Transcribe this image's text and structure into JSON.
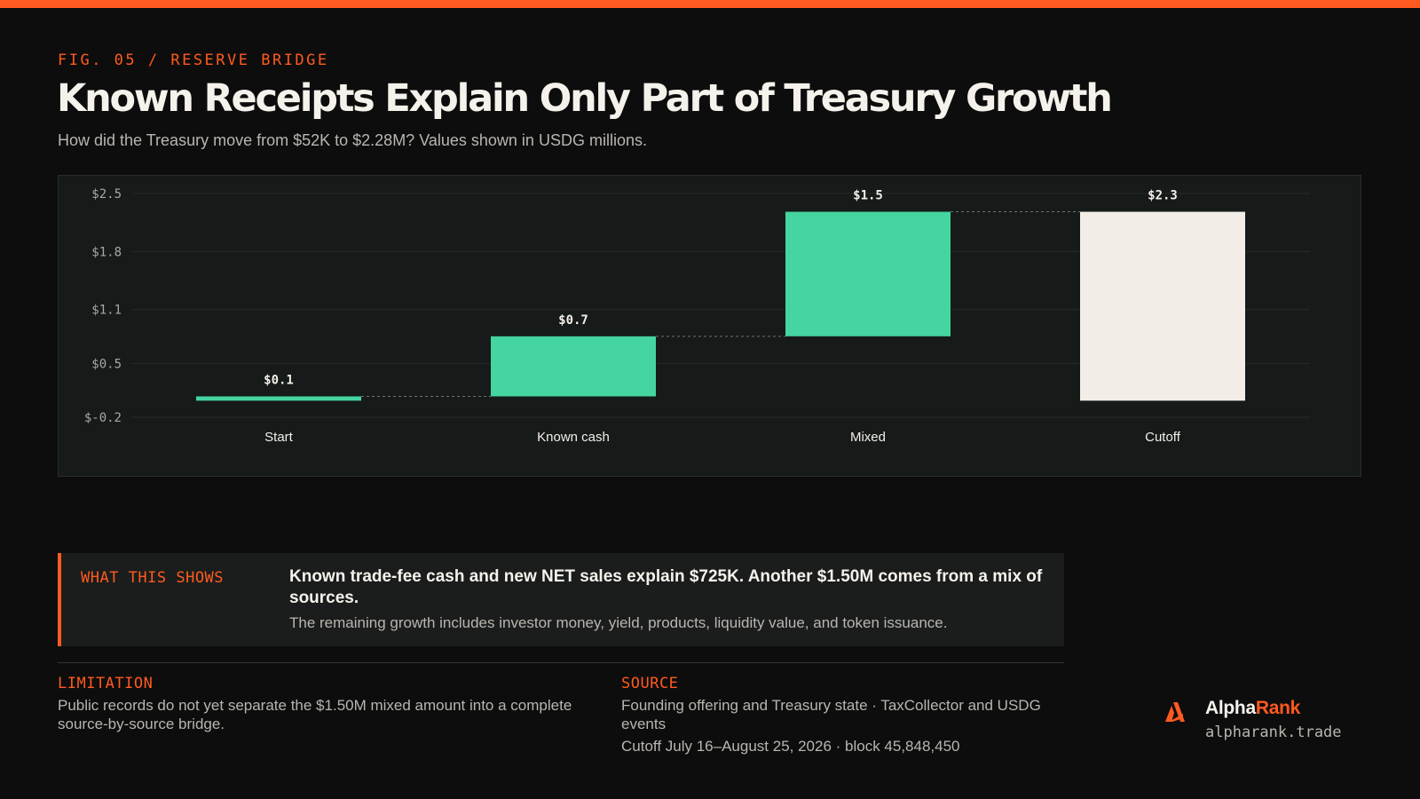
{
  "header": {
    "kicker": "FIG. 05 / RESERVE BRIDGE",
    "title": "Known Receipts Explain Only Part of Treasury Growth",
    "subtitle": "How did the Treasury move from $52K to $2.28M? Values shown in USDG millions."
  },
  "chart_data": {
    "type": "bar",
    "subtype": "waterfall",
    "categories": [
      "Start",
      "Known cash",
      "Mixed",
      "Cutoff"
    ],
    "bars": [
      {
        "category": "Start",
        "kind": "total",
        "base": 0,
        "top": 0.052,
        "label": "$0.1"
      },
      {
        "category": "Known cash",
        "kind": "increase",
        "base": 0.052,
        "top": 0.777,
        "label": "$0.7"
      },
      {
        "category": "Mixed",
        "kind": "increase",
        "base": 0.777,
        "top": 2.28,
        "label": "$1.5"
      },
      {
        "category": "Cutoff",
        "kind": "total",
        "base": 0,
        "top": 2.28,
        "label": "$2.3"
      }
    ],
    "y_ticks": [
      {
        "value": 2.5,
        "label": "$2.5"
      },
      {
        "value": 1.8,
        "label": "$1.8"
      },
      {
        "value": 1.1,
        "label": "$1.1"
      },
      {
        "value": 0.45,
        "label": "$0.5"
      },
      {
        "value": -0.2,
        "label": "$-0.2"
      }
    ],
    "ylim": [
      -0.2,
      2.5
    ],
    "grid": true,
    "connectors": true,
    "colors": {
      "increase": "#45d5a1",
      "total": "#f2ede6",
      "grid": "#262a29",
      "connector": "#6f7472"
    }
  },
  "takeaway": {
    "label": "WHAT THIS SHOWS",
    "headline": "Known trade-fee cash and new NET sales explain $725K. Another $1.50M comes from a mix of sources.",
    "detail": "The remaining growth includes investor money, yield, products, liquidity value, and token issuance."
  },
  "limitation": {
    "label": "LIMITATION",
    "text": "Public records do not yet separate the $1.50M mixed amount into a complete source-by-source bridge."
  },
  "source": {
    "label": "SOURCE",
    "line1": "Founding offering and Treasury state · TaxCollector and USDG events",
    "line2": "Cutoff July 16–August 25, 2026 · block 45,848,450"
  },
  "brand": {
    "name_part1": "Alpha",
    "name_part2": "Rank",
    "url": "alpharank.trade",
    "accent_color": "#ff5a1f",
    "logo_icon": "alpharank-logo-icon"
  }
}
